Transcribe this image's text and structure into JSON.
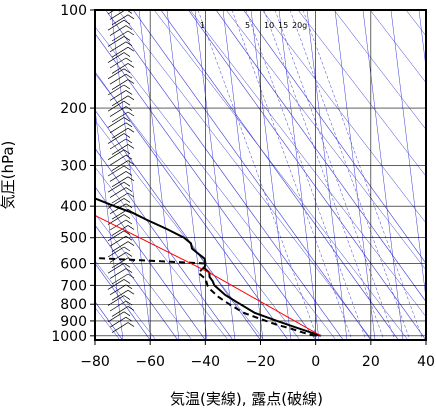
{
  "chart_data": {
    "type": "line",
    "title": "",
    "xlabel": "気温(実線), 露点(破線)",
    "ylabel": "気圧(hPa)",
    "xlim": [
      -80,
      40
    ],
    "ylim": [
      1030,
      100
    ],
    "y_scale": "log",
    "grid": true,
    "x_ticks": [
      "−80",
      "−60",
      "−40",
      "−20",
      "0",
      "20",
      "40"
    ],
    "x_tick_values": [
      -80,
      -60,
      -40,
      -20,
      0,
      20,
      40
    ],
    "y_ticks": [
      "100",
      "200",
      "300",
      "400",
      "500",
      "600",
      "700",
      "800",
      "900",
      "1000"
    ],
    "y_tick_values": [
      100,
      200,
      300,
      400,
      500,
      600,
      700,
      800,
      900,
      1000
    ],
    "mixing_ratio_labels": [
      "1",
      "5",
      "10",
      "15",
      "20g"
    ],
    "series": [
      {
        "role": "temperature",
        "color": "#000000",
        "dashed": false,
        "points": [
          [
            3,
            1000
          ],
          [
            0,
            975
          ],
          [
            -3,
            950
          ],
          [
            -6,
            925
          ],
          [
            -9,
            900
          ],
          [
            -12,
            875
          ],
          [
            -15,
            850
          ],
          [
            -18,
            800
          ],
          [
            -21,
            750
          ],
          [
            -22.5,
            700
          ],
          [
            -22,
            680
          ],
          [
            -22,
            660
          ],
          [
            -21,
            640
          ],
          [
            -21.5,
            620
          ],
          [
            -20,
            600
          ],
          [
            -19,
            580
          ],
          [
            -20,
            560
          ],
          [
            -21,
            540
          ],
          [
            -20,
            520
          ],
          [
            -21,
            500
          ],
          [
            -25,
            470
          ],
          [
            -30,
            440
          ],
          [
            -33,
            420
          ],
          [
            -38,
            400
          ],
          [
            -44,
            375
          ],
          [
            -49,
            350
          ],
          [
            -51,
            330
          ],
          [
            -53,
            310
          ],
          [
            -55,
            290
          ],
          [
            -55,
            270
          ],
          [
            -56,
            250
          ],
          [
            -57,
            235
          ],
          [
            -57,
            220
          ],
          [
            -57,
            200
          ],
          [
            -53,
            185
          ],
          [
            -52,
            170
          ],
          [
            -51,
            155
          ],
          [
            -50,
            140
          ],
          [
            -52,
            130
          ],
          [
            -54,
            120
          ],
          [
            -56,
            110
          ],
          [
            -57,
            100
          ]
        ]
      },
      {
        "role": "dewpoint",
        "color": "#000000",
        "dashed": true,
        "points": [
          [
            1,
            1000
          ],
          [
            -3,
            975
          ],
          [
            -6,
            950
          ],
          [
            -10,
            925
          ],
          [
            -13,
            900
          ],
          [
            -16,
            875
          ],
          [
            -19,
            850
          ],
          [
            -22,
            800
          ],
          [
            -24,
            760
          ],
          [
            -25,
            720
          ],
          [
            -25,
            700
          ],
          [
            -24,
            670
          ],
          [
            -25,
            640
          ],
          [
            -22,
            620
          ],
          [
            -20,
            600
          ],
          [
            -62,
            575
          ],
          [
            -63,
            560
          ],
          [
            -64,
            540
          ],
          [
            -60,
            520
          ],
          [
            -58,
            490
          ],
          [
            -55,
            460
          ],
          [
            -50,
            440
          ],
          [
            -48,
            420
          ],
          [
            -45,
            400
          ],
          [
            -46,
            380
          ],
          [
            -62,
            370
          ],
          [
            -70,
            370
          ]
        ]
      },
      {
        "role": "parcel",
        "color": "#ff0000",
        "dashed": false,
        "points": [
          [
            3,
            1000
          ],
          [
            -21,
            640
          ],
          [
            -47,
            430
          ],
          [
            -60,
            370
          ],
          [
            -80,
            268
          ]
        ]
      }
    ]
  }
}
